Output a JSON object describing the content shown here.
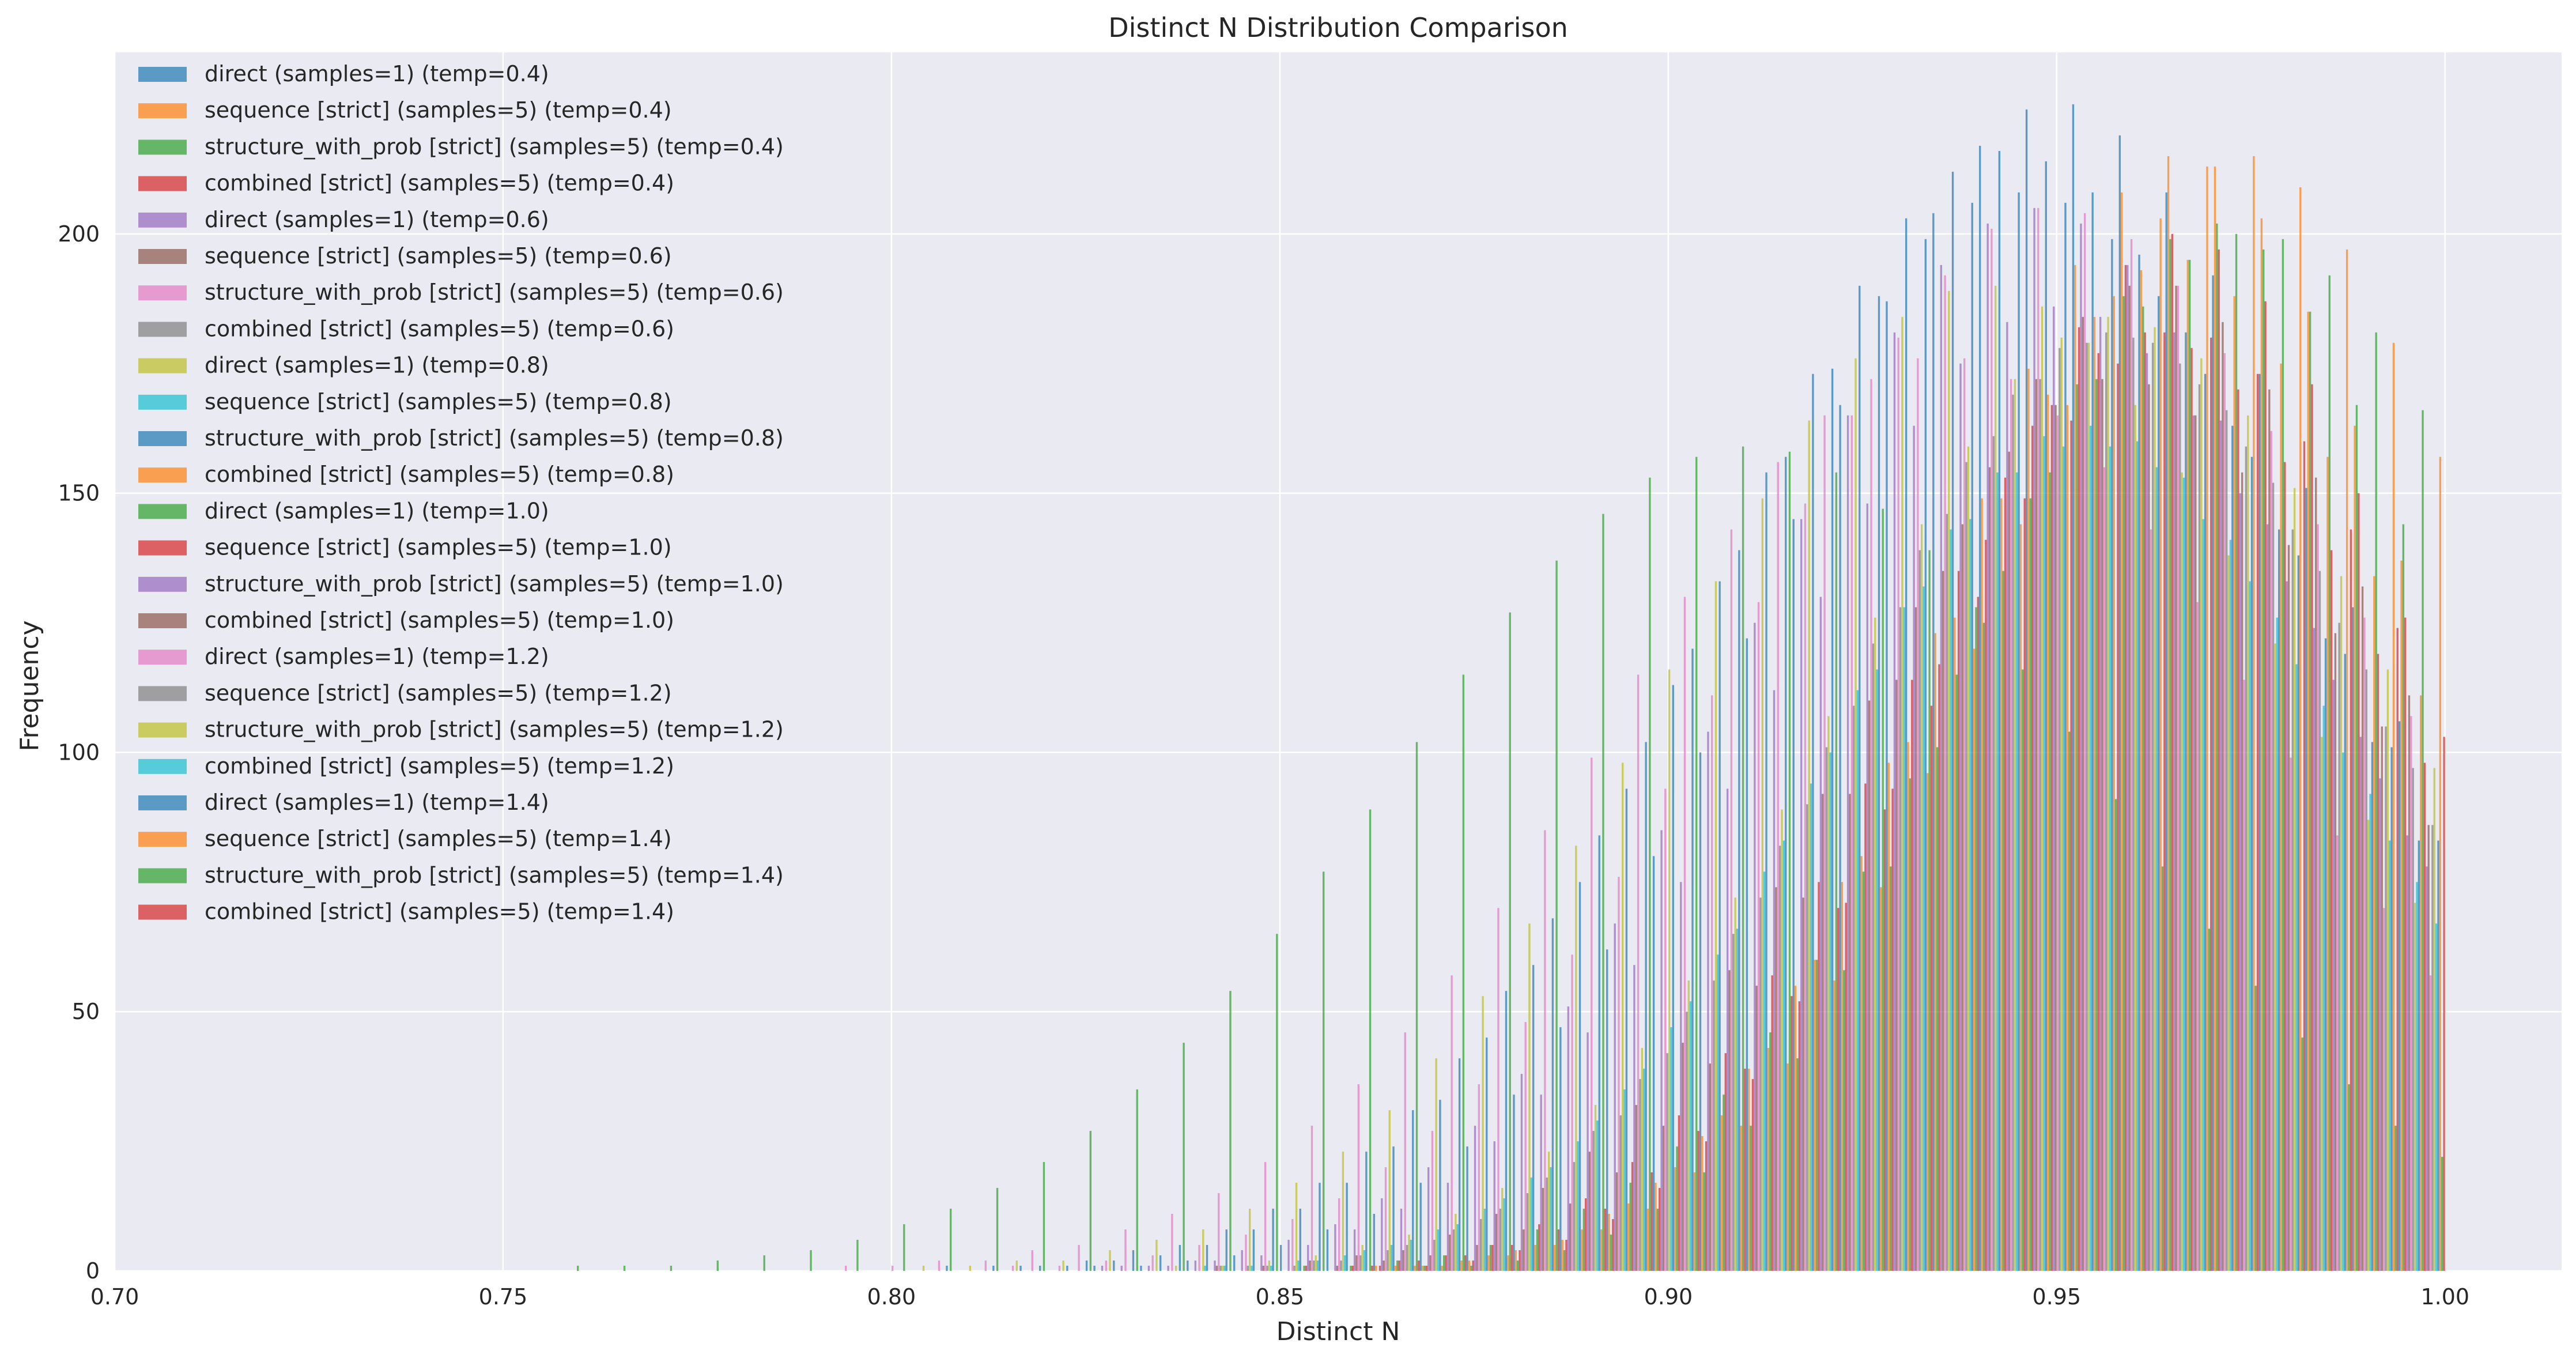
{
  "chart_data": {
    "type": "histogram",
    "title": "Distinct N Distribution Comparison",
    "xlabel": "Distinct N",
    "ylabel": "Frequency",
    "xlim": [
      0.7,
      1.015
    ],
    "ylim": [
      0,
      235
    ],
    "xticks": [
      0.7,
      0.75,
      0.8,
      0.85,
      0.9,
      0.95,
      1.0
    ],
    "xtick_labels": [
      "0.70",
      "0.75",
      "0.80",
      "0.85",
      "0.90",
      "0.95",
      "1.00"
    ],
    "yticks": [
      0,
      50,
      100,
      150,
      200
    ],
    "ytick_labels": [
      "0",
      "50",
      "100",
      "150",
      "200"
    ],
    "grid": true,
    "legend_position": "upper left",
    "bin_range": [
      0.7,
      1.0
    ],
    "num_bins": 50,
    "bar_alpha": 0.7,
    "series": [
      {
        "name": "direct (samples=1) (temp=0.4)",
        "color": "#1f77b4",
        "peak_x": 0.95,
        "peak_y": 225,
        "spread": 0.036
      },
      {
        "name": "sequence [strict] (samples=5) (temp=0.4)",
        "color": "#ff7f0e",
        "peak_x": 0.966,
        "peak_y": 215,
        "spread": 0.03
      },
      {
        "name": "structure_with_prob [strict] (samples=5) (temp=0.4)",
        "color": "#2ca02c",
        "peak_x": 0.97,
        "peak_y": 202,
        "spread": 0.03
      },
      {
        "name": "combined [strict] (samples=5) (temp=0.4)",
        "color": "#d62728",
        "peak_x": 0.966,
        "peak_y": 200,
        "spread": 0.03
      },
      {
        "name": "direct (samples=1) (temp=0.6)",
        "color": "#9467bd",
        "peak_x": 0.947,
        "peak_y": 205,
        "spread": 0.036
      },
      {
        "name": "sequence [strict] (samples=5) (temp=0.6)",
        "color": "#8c564b",
        "peak_x": 0.962,
        "peak_y": 191,
        "spread": 0.032
      },
      {
        "name": "structure_with_prob [strict] (samples=5) (temp=0.6)",
        "color": "#e377c2",
        "peak_x": 0.95,
        "peak_y": 205,
        "spread": 0.04
      },
      {
        "name": "combined [strict] (samples=5) (temp=0.6)",
        "color": "#7f7f7f",
        "peak_x": 0.958,
        "peak_y": 180,
        "spread": 0.034
      },
      {
        "name": "direct (samples=1) (temp=0.8)",
        "color": "#bcbd22",
        "peak_x": 0.94,
        "peak_y": 190,
        "spread": 0.04
      },
      {
        "name": "sequence [strict] (samples=5) (temp=0.8)",
        "color": "#17becf",
        "peak_x": 0.954,
        "peak_y": 163,
        "spread": 0.034
      },
      {
        "name": "structure_with_prob [strict] (samples=5) (temp=0.8)",
        "color": "#1f77b4",
        "peak_x": 0.944,
        "peak_y": 216,
        "spread": 0.038
      },
      {
        "name": "combined [strict] (samples=5) (temp=0.8)",
        "color": "#ff7f0e",
        "peak_x": 0.965,
        "peak_y": 195,
        "spread": 0.03
      },
      {
        "name": "direct (samples=1) (temp=1.0)",
        "color": "#2ca02c",
        "peak_x": 0.975,
        "peak_y": 200,
        "spread": 0.036
      },
      {
        "name": "sequence [strict] (samples=5) (temp=1.0)",
        "color": "#d62728",
        "peak_x": 0.962,
        "peak_y": 181,
        "spread": 0.032
      },
      {
        "name": "structure_with_prob [strict] (samples=5) (temp=1.0)",
        "color": "#9467bd",
        "peak_x": 0.95,
        "peak_y": 186,
        "spread": 0.036
      },
      {
        "name": "combined [strict] (samples=5) (temp=1.0)",
        "color": "#8c564b",
        "peak_x": 0.958,
        "peak_y": 172,
        "spread": 0.034
      },
      {
        "name": "direct (samples=1) (temp=1.2)",
        "color": "#e377c2",
        "peak_x": 0.935,
        "peak_y": 176,
        "spread": 0.042
      },
      {
        "name": "sequence [strict] (samples=5) (temp=1.2)",
        "color": "#7f7f7f",
        "peak_x": 0.957,
        "peak_y": 181,
        "spread": 0.034
      },
      {
        "name": "structure_with_prob [strict] (samples=5) (temp=1.2)",
        "color": "#bcbd22",
        "peak_x": 0.958,
        "peak_y": 184,
        "spread": 0.036
      },
      {
        "name": "combined [strict] (samples=5) (temp=1.2)",
        "color": "#17becf",
        "peak_x": 0.954,
        "peak_y": 160,
        "spread": 0.034
      },
      {
        "name": "direct (samples=1) (temp=1.4)",
        "color": "#1f77b4",
        "peak_x": 0.945,
        "peak_y": 208,
        "spread": 0.04
      },
      {
        "name": "sequence [strict] (samples=5) (temp=1.4)",
        "color": "#ff7f0e",
        "peak_x": 0.974,
        "peak_y": 215,
        "spread": 0.032
      },
      {
        "name": "structure_with_prob [strict] (samples=5) (temp=1.4)",
        "color": "#2ca02c",
        "peak_x": 0.91,
        "peak_y": 159,
        "spread": 0.045
      },
      {
        "name": "combined [strict] (samples=5) (temp=1.4)",
        "color": "#d62728",
        "peak_x": 0.966,
        "peak_y": 181,
        "spread": 0.032
      }
    ]
  }
}
